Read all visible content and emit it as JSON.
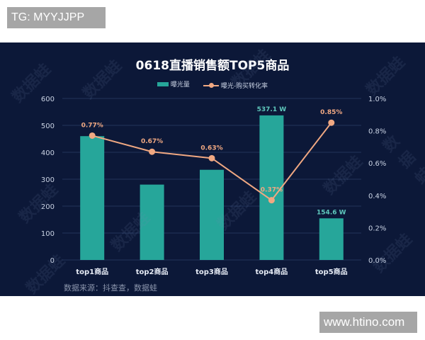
{
  "overlay": {
    "top_tag": "TG: MYYJJPP",
    "bottom_tag": "www.htino.com",
    "watermark_text": "数据蛙"
  },
  "colors": {
    "background": "#0c1838",
    "bar": "#26a69a",
    "line": "#f0a882",
    "bar_label": "#5fc9bd",
    "line_label": "#f0a882",
    "grid": "#22335a",
    "axis_text": "#c9d2e3"
  },
  "chart_data": {
    "type": "bar+line",
    "title": "0618直播销售额TOP5商品",
    "categories": [
      "top1商品",
      "top2商品",
      "top3商品",
      "top4商品",
      "top5商品"
    ],
    "series": [
      {
        "name": "曝光量",
        "type": "bar",
        "axis": "left",
        "values": [
          460,
          280,
          335,
          537.1,
          154.6
        ],
        "data_labels": [
          "",
          "",
          "",
          "537.1 W",
          "154.6 W"
        ]
      },
      {
        "name": "曝光-购买转化率",
        "type": "line",
        "axis": "right",
        "values": [
          0.77,
          0.67,
          0.63,
          0.37,
          0.85
        ],
        "data_labels": [
          "0.77%",
          "0.67%",
          "0.63%",
          "0.37%",
          "0.85%"
        ]
      }
    ],
    "y_left": {
      "ylim": [
        0,
        600
      ],
      "ticks": [
        "0",
        "100",
        "200",
        "300",
        "400",
        "500",
        "600"
      ]
    },
    "y_right": {
      "ylim": [
        0,
        1.0
      ],
      "ticks": [
        "0.0%",
        "0.2%",
        "0.4%",
        "0.6%",
        "0.8%",
        "1.0%"
      ]
    },
    "xlabel": "",
    "ylabel": "",
    "grid": true,
    "legend_position": "top-center",
    "source_note": "数据来源：抖查查，数据蛙"
  }
}
